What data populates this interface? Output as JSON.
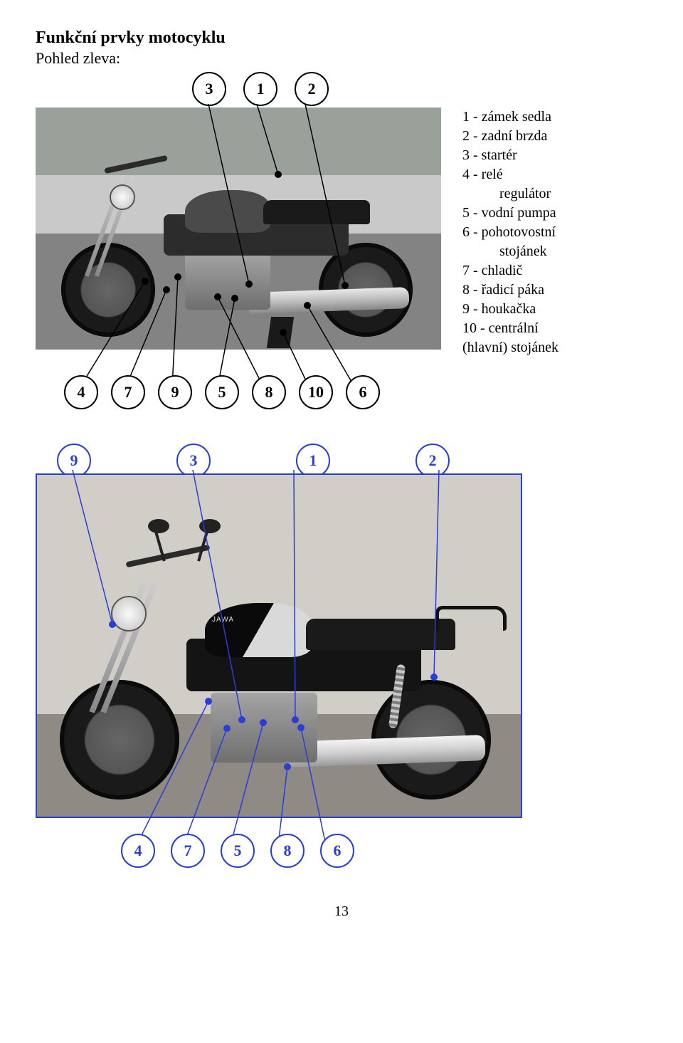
{
  "title": "Funkční prvky motocyklu",
  "subtitle": "Pohled zleva:",
  "legend": {
    "items": [
      "1 - zámek sedla",
      "2 - zadní brzda",
      "3 - startér",
      "4 - relé",
      "regulátor",
      "5 - vodní pumpa",
      "6 - pohotovostní",
      "stojánek",
      "7 - chladič",
      "8 - řadicí páka",
      "9 - houkačka",
      "10 - centrální",
      "(hlavní) stojánek"
    ],
    "indent_lines": [
      4,
      7,
      12
    ]
  },
  "figure_a": {
    "top_bubbles": [
      "3",
      "1",
      "2"
    ],
    "bottom_bubbles": [
      "4",
      "7",
      "9",
      "5",
      "8",
      "10",
      "6"
    ],
    "leaders_top": [
      {
        "from": [
          243,
          45
        ],
        "to": [
          300,
          298
        ]
      },
      {
        "from": [
          311,
          45
        ],
        "to": [
          341,
          144
        ]
      },
      {
        "from": [
          379,
          45
        ],
        "to": [
          435,
          300
        ]
      }
    ],
    "leaders_bottom": [
      {
        "from": [
          63,
          442
        ],
        "to": [
          154,
          294
        ]
      },
      {
        "from": [
          127,
          442
        ],
        "to": [
          184,
          306
        ]
      },
      {
        "from": [
          192,
          442
        ],
        "to": [
          200,
          288
        ]
      },
      {
        "from": [
          256,
          442
        ],
        "to": [
          280,
          318
        ]
      },
      {
        "from": [
          320,
          442
        ],
        "to": [
          256,
          316
        ]
      },
      {
        "from": [
          384,
          442
        ],
        "to": [
          348,
          366
        ]
      },
      {
        "from": [
          448,
          442
        ],
        "to": [
          382,
          328
        ]
      }
    ],
    "dots": [
      [
        300,
        298
      ],
      [
        341,
        144
      ],
      [
        435,
        300
      ],
      [
        154,
        294
      ],
      [
        184,
        306
      ],
      [
        200,
        288
      ],
      [
        280,
        318
      ],
      [
        256,
        316
      ],
      [
        348,
        366
      ],
      [
        382,
        328
      ]
    ]
  },
  "figure_b": {
    "top_bubbles": [
      "9",
      "3",
      "1",
      "2"
    ],
    "bottom_bubbles": [
      "4",
      "7",
      "5",
      "8",
      "6"
    ],
    "leaders_top": [
      {
        "from": [
          52,
          45
        ],
        "to": [
          108,
          262
        ]
      },
      {
        "from": [
          221,
          45
        ],
        "to": [
          290,
          396
        ]
      },
      {
        "from": [
          363,
          45
        ],
        "to": [
          365,
          396
        ]
      },
      {
        "from": [
          567,
          45
        ],
        "to": [
          560,
          336
        ]
      }
    ],
    "leaders_bottom": [
      {
        "from": [
          142,
          572
        ],
        "to": [
          243,
          370
        ]
      },
      {
        "from": [
          208,
          572
        ],
        "to": [
          269,
          408
        ]
      },
      {
        "from": [
          274,
          572
        ],
        "to": [
          320,
          400
        ]
      },
      {
        "from": [
          341,
          572
        ],
        "to": [
          354,
          462
        ]
      },
      {
        "from": [
          408,
          572
        ],
        "to": [
          373,
          407
        ]
      }
    ],
    "dots": [
      [
        108,
        262
      ],
      [
        290,
        396
      ],
      [
        365,
        396
      ],
      [
        560,
        336
      ],
      [
        243,
        370
      ],
      [
        269,
        408
      ],
      [
        320,
        400
      ],
      [
        354,
        462
      ],
      [
        373,
        407
      ]
    ]
  },
  "page_number": "13",
  "colors": {
    "blue": "#2a3dd6",
    "black": "#000000"
  }
}
